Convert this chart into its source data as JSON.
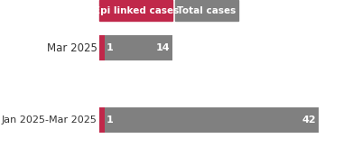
{
  "categories": [
    "Mar 2025",
    "Jan 2025-Mar 2025"
  ],
  "epi_values": [
    1,
    1
  ],
  "total_values": [
    14,
    42
  ],
  "epi_color": "#c0284a",
  "total_color": "#808080",
  "bg_color": "#ffffff",
  "text_color_white": "#ffffff",
  "text_color_dark": "#ffffff",
  "label_epi": "Epi linked cases",
  "label_total": "Total cases",
  "bar_height": 0.35,
  "figsize": [
    4.01,
    1.74
  ],
  "dpi": 100
}
